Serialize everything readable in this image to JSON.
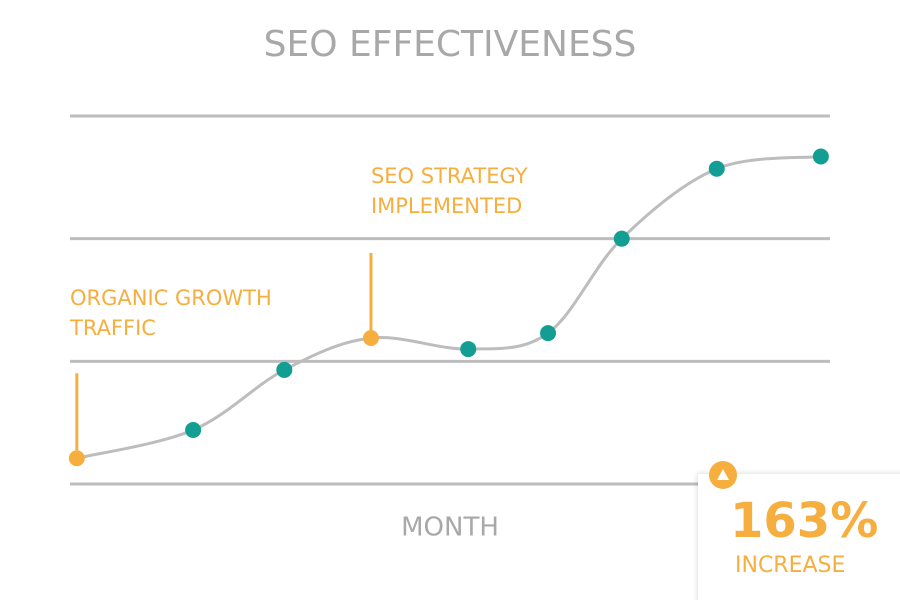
{
  "chart_data": {
    "type": "line",
    "title": "SEO EFFECTIVENESS",
    "x_label": "MONTH",
    "x": [
      0.09,
      1.62,
      2.82,
      3.96,
      5.24,
      6.29,
      7.26,
      8.51,
      9.88
    ],
    "series": [
      {
        "color": "#129e92",
        "values": [
          0.21,
          0.44,
          0.93,
          1.19,
          1.1,
          1.23,
          2.0,
          2.57,
          2.67
        ]
      }
    ],
    "line_color": "#bdbdbd",
    "highlight_color": "#f6ae3f",
    "xlim": [
      0,
      10
    ],
    "ylim": [
      0,
      3
    ],
    "yticks": [
      0,
      1,
      2,
      3
    ],
    "grid": true,
    "annotations": [
      {
        "at": 0,
        "lines": [
          "ORGANIC GROWTH",
          "TRAFFIC"
        ]
      },
      {
        "at": 3,
        "lines": [
          "SEO STRATEGY",
          "IMPLEMENTED"
        ]
      }
    ],
    "callout": {
      "value": 163,
      "value_label": "163%",
      "text": "INCREASE"
    }
  }
}
